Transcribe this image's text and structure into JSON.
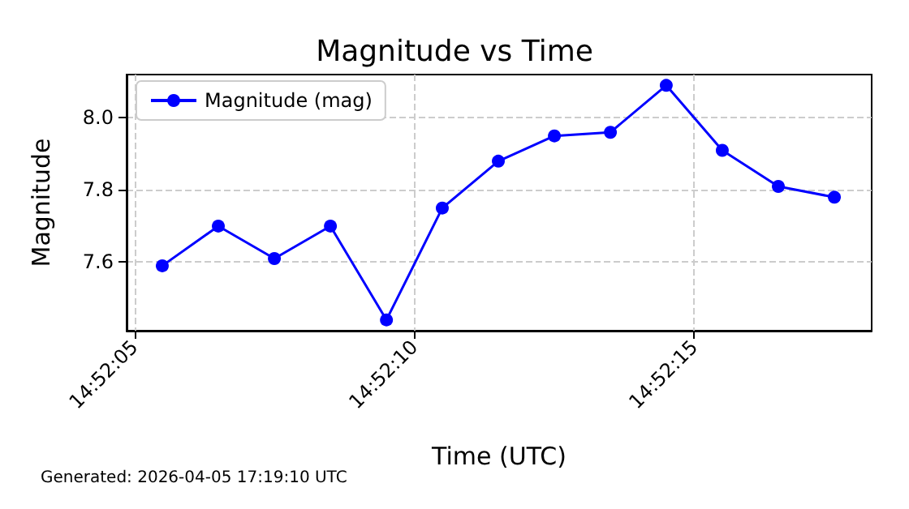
{
  "chart_data": {
    "type": "line",
    "title": "Magnitude vs Time",
    "xlabel": "Time (UTC)",
    "ylabel": "Magnitude",
    "annotations": [
      "Generated: 2026-04-05 17:19:10 UTC"
    ],
    "x": [
      14.868194,
      14.868472,
      14.86875,
      14.869028,
      14.869306,
      14.869583,
      14.869861,
      14.870139,
      14.870417,
      14.870694,
      14.870972,
      14.87125,
      14.871528
    ],
    "series": [
      {
        "name": "Magnitude (mag)",
        "color": "#0000ff",
        "values": [
          7.59,
          7.7,
          7.61,
          7.7,
          7.44,
          7.75,
          7.88,
          7.95,
          7.96,
          8.09,
          7.91,
          7.81,
          7.78
        ]
      }
    ],
    "xlim": [
      14.868017,
      14.871713
    ],
    "ylim": [
      7.41,
      8.12
    ],
    "xticks": [
      {
        "value": 14.868056,
        "label": "14:52:05"
      },
      {
        "value": 14.869444,
        "label": "14:52:10"
      },
      {
        "value": 14.870833,
        "label": "14:52:15"
      }
    ],
    "yticks": [
      {
        "value": 7.6,
        "label": "7.6"
      },
      {
        "value": 7.8,
        "label": "7.8"
      },
      {
        "value": 8.0,
        "label": "8.0"
      }
    ],
    "grid": true,
    "legend": "top left",
    "marker": "circle",
    "line_style": "solid"
  }
}
